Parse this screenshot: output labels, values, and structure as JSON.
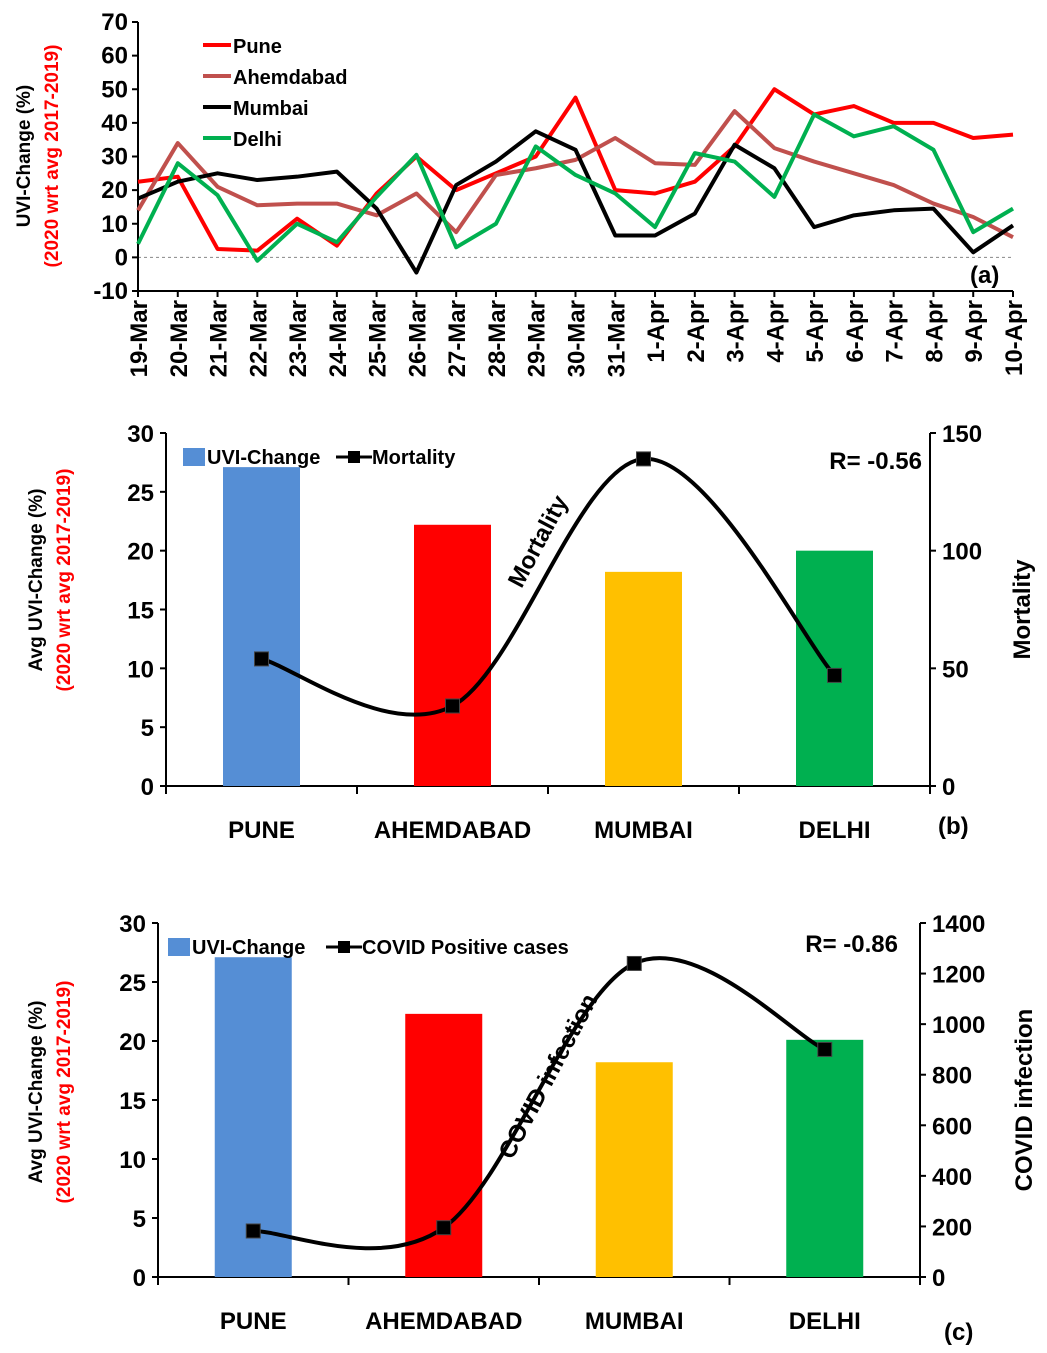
{
  "chart_data": [
    {
      "panel": "(a)",
      "type": "line",
      "ylabel": "UVI-Change (%)",
      "ylabel2": "(2020  wrt avg 2017-2019)",
      "ylim": [
        -10,
        70
      ],
      "yticks": [
        -10,
        0,
        10,
        20,
        30,
        40,
        50,
        60,
        70
      ],
      "legend": "top-left",
      "x": [
        "19-Mar",
        "20-Mar",
        "21-Mar",
        "22-Mar",
        "23-Mar",
        "24-Mar",
        "25-Mar",
        "26-Mar",
        "27-Mar",
        "28-Mar",
        "29-Mar",
        "30-Mar",
        "31-Mar",
        "1-Apr",
        "2-Apr",
        "3-Apr",
        "4-Apr",
        "5-Apr",
        "6-Apr",
        "7-Apr",
        "8-Apr",
        "9-Apr",
        "10-Apr"
      ],
      "series": [
        {
          "name": "Pune",
          "color": "#ff0000",
          "values": [
            22.5,
            24,
            2.5,
            2,
            11.5,
            3.5,
            19,
            30,
            20,
            25,
            30,
            47.5,
            20,
            19,
            22.5,
            33,
            50,
            42.5,
            45,
            40,
            40,
            35.5,
            36.5
          ]
        },
        {
          "name": "Ahemdabad",
          "color": "#c0504d",
          "values": [
            14,
            34,
            21,
            15.5,
            16,
            16,
            12.5,
            19,
            7.5,
            24.5,
            26.5,
            29,
            35.5,
            28,
            27.5,
            43.5,
            32.5,
            28.5,
            25,
            21.5,
            16,
            12,
            6
          ]
        },
        {
          "name": "Mumbai",
          "color": "#000000",
          "values": [
            17.5,
            22.5,
            25,
            23,
            24,
            25.5,
            14.5,
            -4.5,
            21.5,
            28.5,
            37.5,
            32,
            6.5,
            6.5,
            13,
            33.5,
            26.5,
            9,
            12.5,
            14,
            14.5,
            1.5,
            9.5
          ]
        },
        {
          "name": "Delhi",
          "color": "#00b050",
          "values": [
            4,
            28,
            18.5,
            -1,
            10,
            4.5,
            18,
            30.5,
            3,
            10,
            33,
            24.5,
            19,
            9,
            31,
            28.5,
            18,
            42.5,
            36,
            39,
            32,
            7.5,
            14.5
          ]
        }
      ]
    },
    {
      "panel": "(b)",
      "type": "bar",
      "categories": [
        "PUNE",
        "AHEMDABAD",
        "MUMBAI",
        "DELHI"
      ],
      "ylabel": "Avg UVI-Change (%)",
      "ylabel2": "(2020  wrt avg 2017-2019)",
      "y2label": "Mortality",
      "ylim": [
        0,
        30
      ],
      "yticks": [
        0,
        5,
        10,
        15,
        20,
        25,
        30
      ],
      "y2lim": [
        0,
        150
      ],
      "y2ticks": [
        0,
        50,
        100,
        150
      ],
      "annotation": "R= -0.56",
      "curve_label": "Mortality",
      "legend": "top-left",
      "series": [
        {
          "name": "UVI-Change",
          "type": "bar",
          "axis": "left",
          "colors": [
            "#558ed5",
            "#ff0000",
            "#ffc000",
            "#00b050"
          ],
          "values": [
            27.1,
            22.2,
            18.2,
            20.0
          ]
        },
        {
          "name": "Mortality",
          "type": "line",
          "axis": "right",
          "color": "#000000",
          "values": [
            54,
            34,
            139,
            47
          ]
        }
      ]
    },
    {
      "panel": "(c)",
      "type": "bar",
      "categories": [
        "PUNE",
        "AHEMDABAD",
        "MUMBAI",
        "DELHI"
      ],
      "ylabel": "Avg UVI-Change (%)",
      "ylabel2": "(2020  wrt avg 2017-2019)",
      "y2label": "COVID  infection",
      "ylim": [
        0,
        30
      ],
      "yticks": [
        0,
        5,
        10,
        15,
        20,
        25,
        30
      ],
      "y2lim": [
        0,
        1400
      ],
      "y2ticks": [
        0,
        200,
        400,
        600,
        800,
        1000,
        1200,
        1400
      ],
      "annotation": "R= -0.86",
      "curve_label": "COVID infection",
      "legend": "top-left",
      "series": [
        {
          "name": "UVI-Change",
          "type": "bar",
          "axis": "left",
          "colors": [
            "#558ed5",
            "#ff0000",
            "#ffc000",
            "#00b050"
          ],
          "values": [
            27.1,
            22.3,
            18.2,
            20.1
          ]
        },
        {
          "name": "COVID Positive cases",
          "type": "line",
          "axis": "right",
          "color": "#000000",
          "values": [
            182,
            195,
            1240,
            900
          ]
        }
      ]
    }
  ]
}
